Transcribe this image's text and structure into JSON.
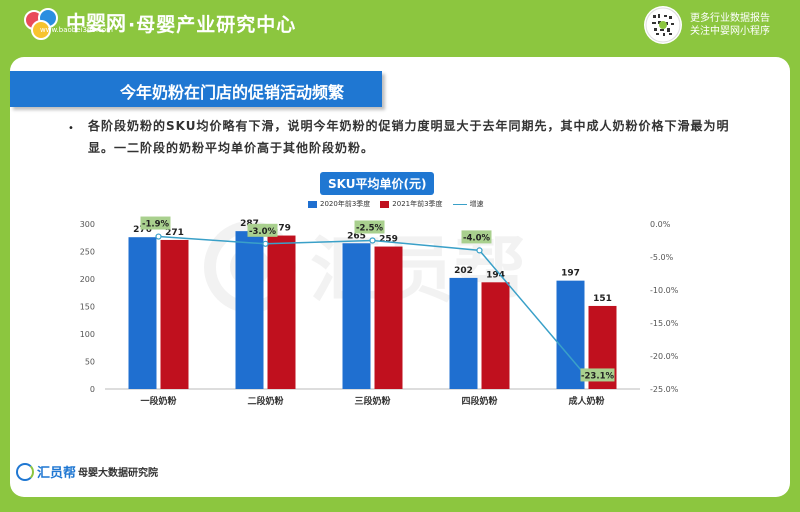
{
  "header": {
    "logo_text": "中婴网",
    "logo_url": "www.baobei360.com",
    "center_title": "·母婴产业研究中心",
    "qr_line1": "更多行业数据报告",
    "qr_line2": "关注中婴网小程序"
  },
  "banner": {
    "title": "今年奶粉在门店的促销活动频繁"
  },
  "body": {
    "bullet": "•",
    "paragraph": "各阶段奶粉的SKU均价略有下滑，说明今年奶粉的促销力度明显大于去年同期先，其中成人奶粉价格下滑最为明显。一二阶段的奶粉平均单价高于其他阶段奶粉。"
  },
  "chart_data": {
    "type": "bar",
    "title": "SKU平均单价(元)",
    "categories": [
      "一段奶粉",
      "二段奶粉",
      "三段奶粉",
      "四段奶粉",
      "成人奶粉"
    ],
    "series": [
      {
        "name": "2020年前3季度",
        "values": [
          276,
          287,
          265,
          202,
          197
        ],
        "color": "#1f6fd0"
      },
      {
        "name": "2021年前3季度",
        "values": [
          271,
          279,
          259,
          194,
          151
        ],
        "color": "#c0101e"
      }
    ],
    "line_series": {
      "name": "增速",
      "values": [
        -1.9,
        -3.0,
        -2.5,
        -4.0,
        -23.1
      ],
      "labels": [
        "-1.9%",
        "-3.0%",
        "-2.5%",
        "-4.0%",
        "-23.1%"
      ],
      "color": "#3aa0c8"
    },
    "y_left": {
      "min": 0,
      "max": 300,
      "ticks": [
        "0",
        "50",
        "100",
        "150",
        "200",
        "250",
        "300"
      ]
    },
    "y_right": {
      "min": -25,
      "max": 0,
      "ticks": [
        "0.0%",
        "-5.0%",
        "-10.0%",
        "-15.0%",
        "-20.0%",
        "-25.0%"
      ]
    },
    "bar_labels_2020": [
      "276",
      "287",
      "265",
      "202",
      "197"
    ],
    "bar_labels_2021": [
      "271",
      "279",
      "259",
      "194",
      "151"
    ],
    "legend": "top"
  },
  "footer": {
    "brand": "汇员帮",
    "sub": "母婴大数据研究院"
  },
  "watermark": "汇员帮",
  "colors": {
    "background": "#8cc63f",
    "accent": "#1f77d2",
    "label_bg": "#a9d08e"
  }
}
